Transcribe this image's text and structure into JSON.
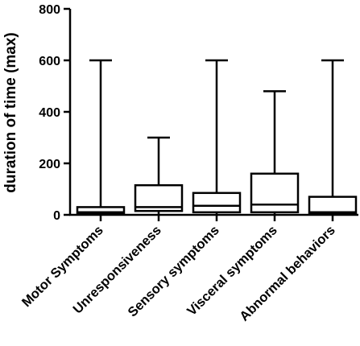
{
  "chart_data": {
    "type": "boxplot",
    "title": "",
    "xlabel": "",
    "ylabel": "duration of time (max)",
    "ylim": [
      0,
      800
    ],
    "yticks": [
      0,
      200,
      400,
      600,
      800
    ],
    "grid": false,
    "categories": [
      "Motor Symptoms",
      "Unresponsiveness",
      "Sensory symptoms",
      "Visceral symptoms",
      "Abnormal behaviors"
    ],
    "series": [
      {
        "category": "Motor Symptoms",
        "min": 0,
        "q1": 5,
        "median": 10,
        "q3": 30,
        "max": 600
      },
      {
        "category": "Unresponsiveness",
        "min": 0,
        "q1": 15,
        "median": 30,
        "q3": 115,
        "max": 300
      },
      {
        "category": "Sensory symptoms",
        "min": 0,
        "q1": 10,
        "median": 35,
        "q3": 85,
        "max": 600
      },
      {
        "category": "Visceral symptoms",
        "min": 0,
        "q1": 10,
        "median": 40,
        "q3": 160,
        "max": 480
      },
      {
        "category": "Abnormal behaviors",
        "min": 0,
        "q1": 5,
        "median": 10,
        "q3": 70,
        "max": 600
      }
    ]
  }
}
